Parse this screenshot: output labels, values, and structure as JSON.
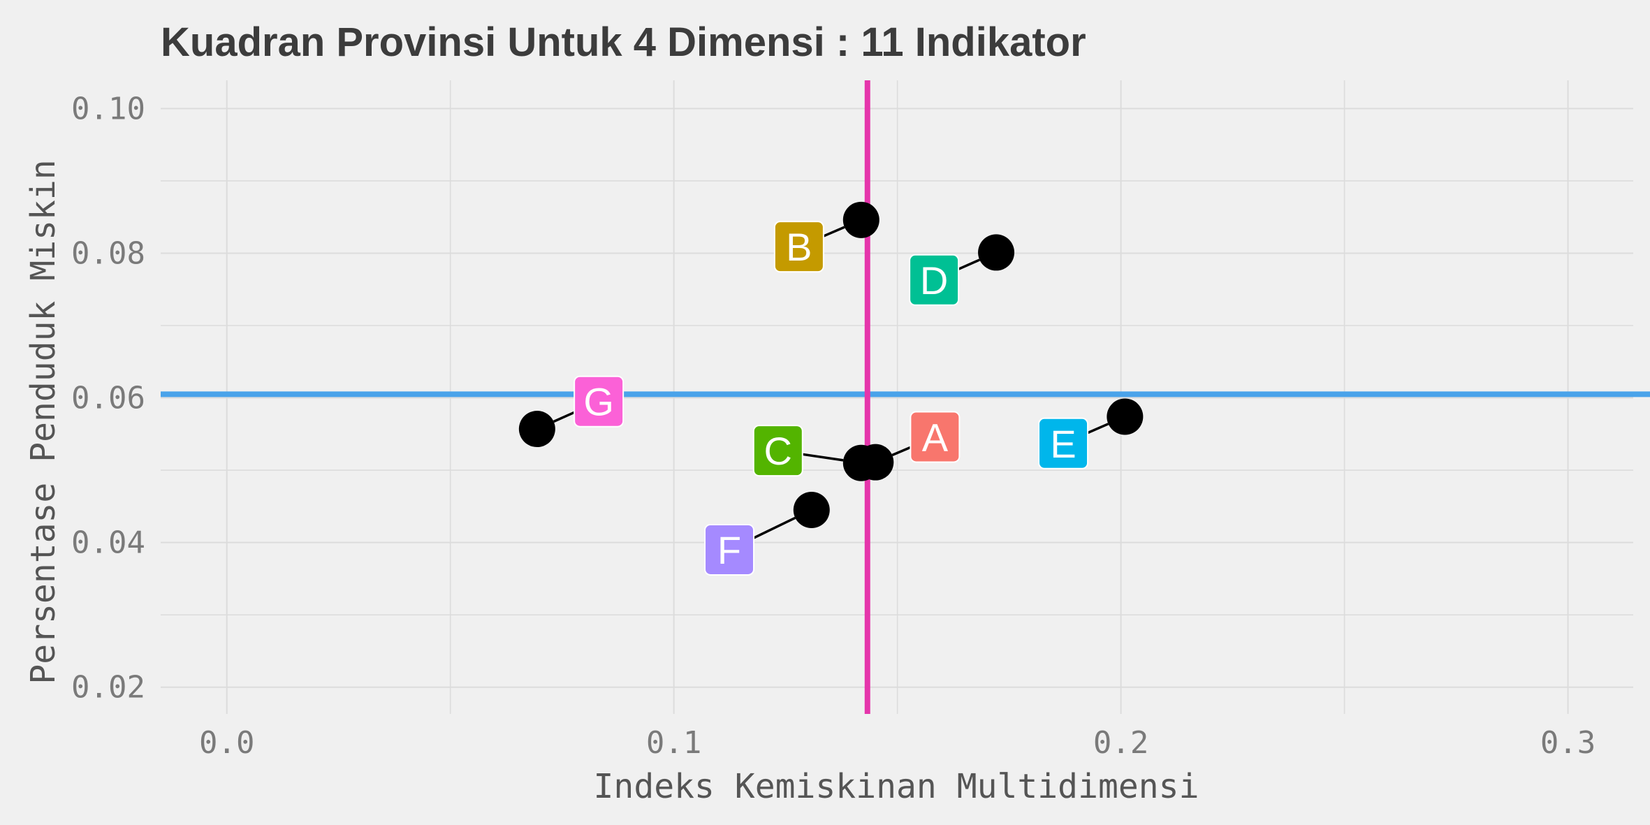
{
  "chart_data": {
    "type": "scatter",
    "title": "Kuadran Provinsi Untuk 4 Dimensi : 11 Indikator",
    "xlabel": "Indeks Kemiskinan Multidimensi",
    "ylabel": "Persentase Penduduk Miskin",
    "xlim": [
      -0.0148,
      0.3146
    ],
    "ylim": [
      0.0163,
      0.1039
    ],
    "x_ticks": [
      0.0,
      0.1,
      0.2,
      0.3
    ],
    "x_tick_labels": [
      "0.0",
      "0.1",
      "0.2",
      "0.3"
    ],
    "y_ticks": [
      0.02,
      0.04,
      0.06,
      0.08,
      0.1
    ],
    "y_tick_labels": [
      "0.02",
      "0.04",
      "0.06",
      "0.08",
      "0.10"
    ],
    "grid": true,
    "legend": "none",
    "reference_lines": {
      "vertical_x": 0.1433,
      "vertical_color": "#e535ab",
      "horizontal_y": 0.0605,
      "horizontal_color": "#4aa3ea"
    },
    "point_color": "#000000",
    "points": [
      {
        "label": "A",
        "x": 0.1451,
        "y": 0.0511,
        "label_x": 0.1584,
        "label_y": 0.0546,
        "color": "#f8766d"
      },
      {
        "label": "B",
        "x": 0.1419,
        "y": 0.0846,
        "label_x": 0.128,
        "label_y": 0.0809,
        "color": "#c49a00"
      },
      {
        "label": "C",
        "x": 0.1419,
        "y": 0.051,
        "label_x": 0.1233,
        "label_y": 0.0527,
        "color": "#53b400"
      },
      {
        "label": "D",
        "x": 0.1721,
        "y": 0.0801,
        "label_x": 0.1582,
        "label_y": 0.0763,
        "color": "#00c094"
      },
      {
        "label": "E",
        "x": 0.2009,
        "y": 0.0574,
        "label_x": 0.1871,
        "label_y": 0.0537,
        "color": "#00b6eb"
      },
      {
        "label": "F",
        "x": 0.1308,
        "y": 0.0445,
        "label_x": 0.1124,
        "label_y": 0.039,
        "color": "#a58aff"
      },
      {
        "label": "G",
        "x": 0.0694,
        "y": 0.0557,
        "label_x": 0.0832,
        "label_y": 0.0595,
        "color": "#fb61d7"
      }
    ]
  }
}
